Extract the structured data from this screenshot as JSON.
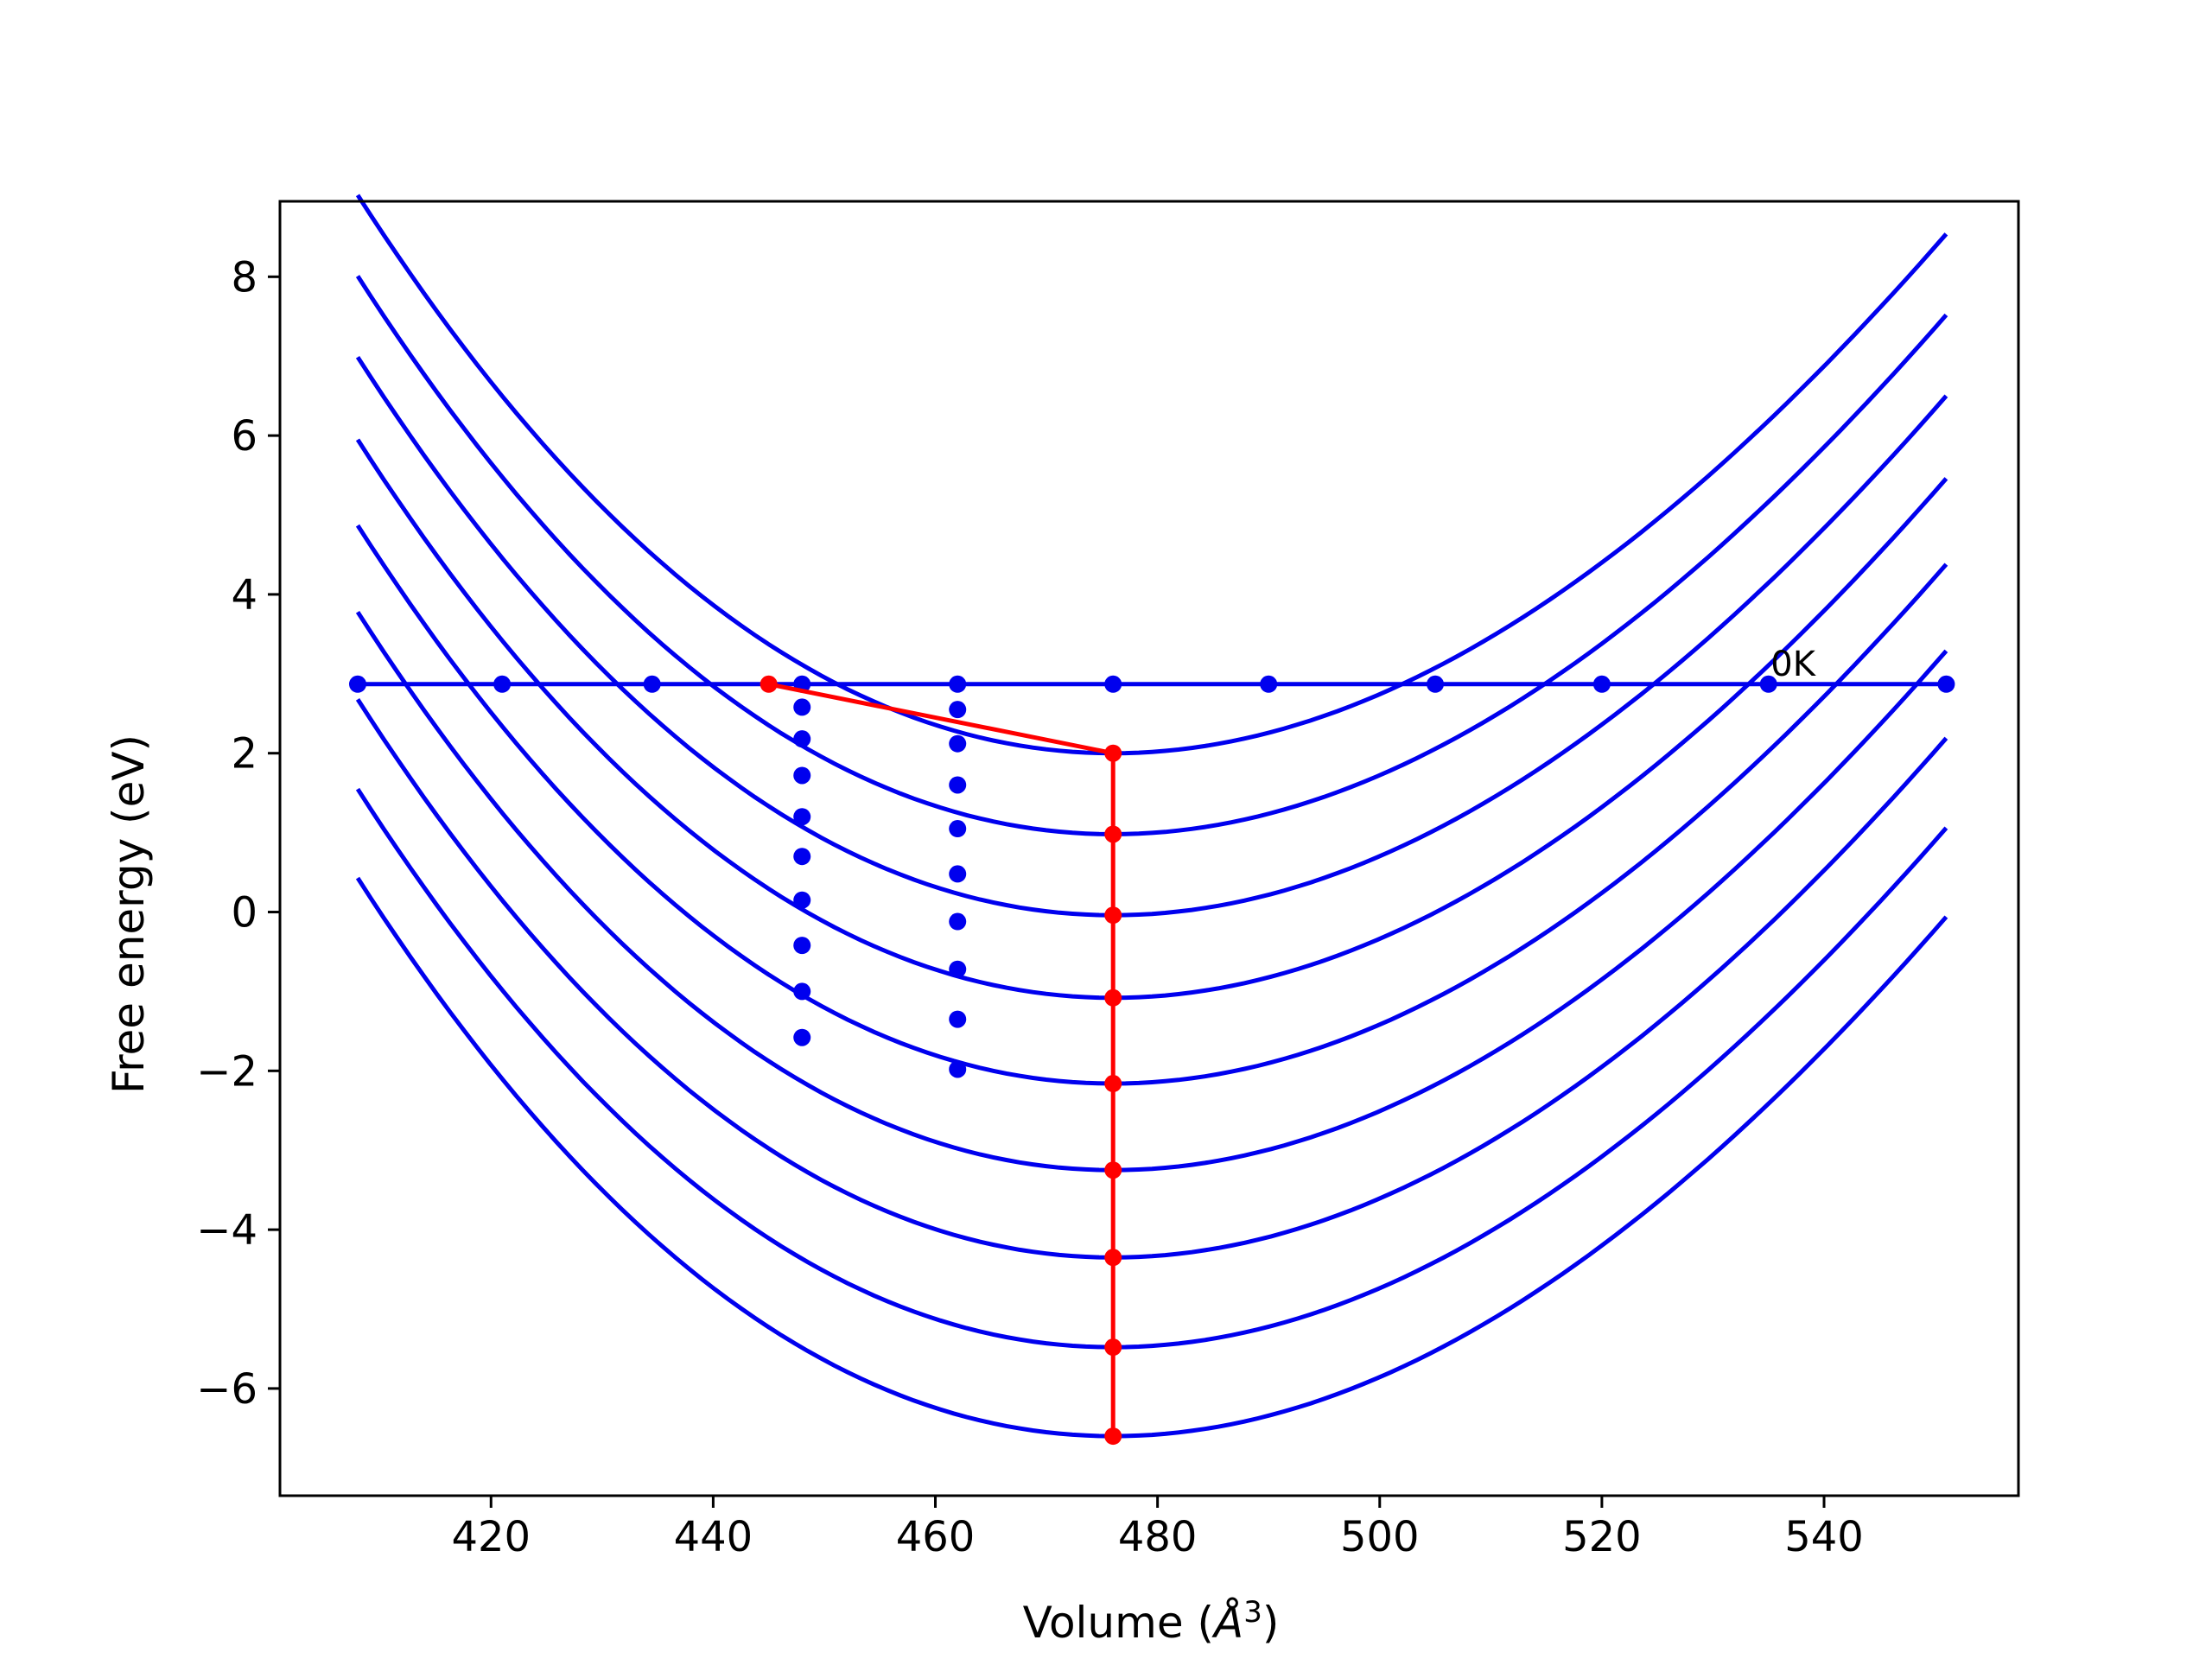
{
  "chart_data": {
    "type": "line",
    "title": "",
    "xlabel": "Volume (",
    "xlabel_symbol": "Å",
    "xlabel_exp": "3",
    "xlabel_close": ")",
    "ylabel": "Free energy (eV)",
    "xlim": [
      401,
      557.5
    ],
    "ylim": [
      -7.35,
      8.95
    ],
    "xticks": [
      420,
      440,
      460,
      480,
      500,
      520,
      540
    ],
    "yticks": [
      -6,
      -4,
      -2,
      0,
      2,
      4,
      6,
      8
    ],
    "ytick_labels": [
      "−6",
      "−4",
      "−2",
      "0",
      "2",
      "4",
      "6",
      "8"
    ],
    "grid": false,
    "legend": "none",
    "curve_color": "#0000ee",
    "path_color": "#ff0000",
    "curves": {
      "x_range": [
        408,
        551
      ],
      "vertex_x": 476,
      "curvature": 0.00135,
      "asymmetry": 2.5e-06,
      "minima": [
        2.0,
        0.98,
        -0.04,
        -1.08,
        -2.16,
        -3.25,
        -4.35,
        -5.48,
        -6.6
      ]
    },
    "zero_k_line": {
      "label": "0K",
      "y": 2.87,
      "x": [
        408,
        421,
        434.5,
        448,
        462,
        476,
        490,
        505,
        520,
        535,
        551
      ]
    },
    "dot_columns": [
      {
        "x": 448,
        "y": [
          2.58,
          2.18,
          1.72,
          1.2,
          0.7,
          0.15,
          -0.42,
          -1.0,
          -1.58
        ]
      },
      {
        "x": 462,
        "y": [
          2.55,
          2.12,
          1.6,
          1.05,
          0.48,
          -0.12,
          -0.72,
          -1.35,
          -1.98
        ]
      }
    ],
    "red_path": {
      "x": [
        445,
        476,
        476,
        476,
        476,
        476,
        476,
        476,
        476,
        476
      ],
      "y": [
        2.87,
        2.0,
        0.98,
        -0.04,
        -1.08,
        -2.16,
        -3.25,
        -4.35,
        -5.48,
        -6.6
      ]
    }
  }
}
